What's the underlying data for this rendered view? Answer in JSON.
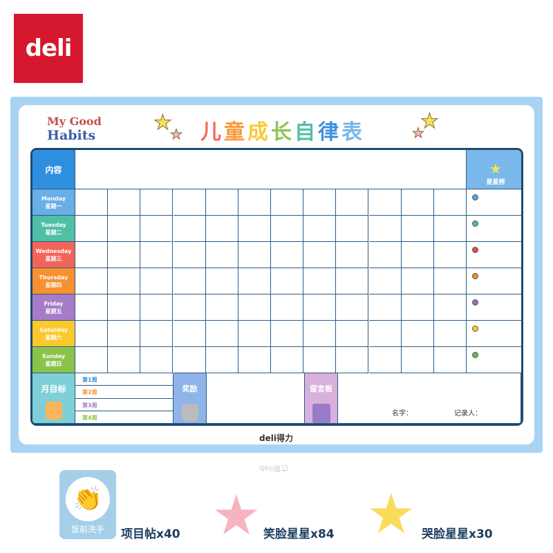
{
  "brand": {
    "logo": "deli",
    "footer": "deli得力"
  },
  "header": {
    "my_good": "My Good",
    "habits": "Habits",
    "title_chars": [
      "儿",
      "童",
      "成",
      "长",
      "自",
      "律",
      "表"
    ],
    "title_colors": [
      "#f36b5e",
      "#f79a3b",
      "#f9c93a",
      "#8cc657",
      "#4fc0a6",
      "#3b8fdc",
      "#79b5ec"
    ]
  },
  "table": {
    "content_label": "内容",
    "star_board_label": "星星榜",
    "days": [
      {
        "en": "Monday",
        "zh": "星期一",
        "color": "#6aaee8",
        "dot": "#4fa3e8"
      },
      {
        "en": "Tuesday",
        "zh": "星期二",
        "color": "#4fbfa6",
        "dot": "#40c0b0"
      },
      {
        "en": "Wednesday",
        "zh": "星期三",
        "color": "#f2645a",
        "dot": "#ef4b3e"
      },
      {
        "en": "Thursday",
        "zh": "星期四",
        "color": "#f7902e",
        "dot": "#f78a22"
      },
      {
        "en": "Friday",
        "zh": "星期五",
        "color": "#a67cc6",
        "dot": "#9a6bc4"
      },
      {
        "en": "Saturday",
        "zh": "星期六",
        "color": "#fbc92c",
        "dot": "#f8d020"
      },
      {
        "en": "Sunday",
        "zh": "星期日",
        "color": "#8bc34a",
        "dot": "#5cc24a"
      }
    ],
    "monthly_goal": "月目标",
    "weeks": [
      {
        "label": "第1周",
        "color": "#2f8fdf"
      },
      {
        "label": "第2周",
        "color": "#f7902e"
      },
      {
        "label": "第3周",
        "color": "#a67cc6"
      },
      {
        "label": "第4周",
        "color": "#8bc34a"
      }
    ],
    "reward": "奖励",
    "message_board": "留言板",
    "name_label": "名字：",
    "recorder_label": "记录人："
  },
  "products": [
    {
      "sticker_text": "饭前洗手",
      "label": "项目帖x40"
    },
    {
      "label": "笑脸星星x84",
      "color": "#f6b3c0"
    },
    {
      "label": "哭脸星星x30",
      "color": "#fbdc5a"
    }
  ]
}
